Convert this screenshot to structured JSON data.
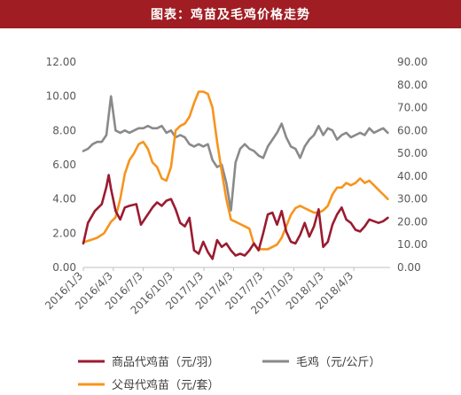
{
  "title": "图表：鸡苗及毛鸡价格走势",
  "chart_data": {
    "type": "line",
    "title": "图表：鸡苗及毛鸡价格走势",
    "xlabel": "",
    "ylabel": "",
    "x_tick_labels": [
      "2016/1/3",
      "2016/4/3",
      "2016/7/3",
      "2016/10/3",
      "2017/1/3",
      "2017/4/3",
      "2017/7/3",
      "2017/10/3",
      "2018/1/3",
      "2018/4/3"
    ],
    "x_range": [
      "2016/1/3",
      "2018/7/22"
    ],
    "y_left": {
      "ticks": [
        "0.00",
        "2.00",
        "4.00",
        "6.00",
        "8.00",
        "10.00",
        "12.00"
      ],
      "range": [
        0,
        12
      ]
    },
    "y_right": {
      "ticks": [
        "0.00",
        "10.00",
        "20.00",
        "30.00",
        "40.00",
        "50.00",
        "60.00",
        "70.00",
        "80.00",
        "90.00"
      ],
      "range": [
        0,
        90
      ]
    },
    "grid": false,
    "legend_position": "bottom",
    "series": [
      {
        "name": "商品代鸡苗（元/羽）",
        "axis": "left",
        "color": "#9b1b30",
        "points": [
          [
            "2016/1/3",
            1.4
          ],
          [
            "2016/1/17",
            2.6
          ],
          [
            "2016/2/7",
            3.3
          ],
          [
            "2016/2/28",
            3.7
          ],
          [
            "2016/3/13",
            4.7
          ],
          [
            "2016/3/20",
            5.4
          ],
          [
            "2016/3/27",
            4.6
          ],
          [
            "2016/4/10",
            3.3
          ],
          [
            "2016/4/24",
            2.8
          ],
          [
            "2016/5/8",
            3.5
          ],
          [
            "2016/5/22",
            3.6
          ],
          [
            "2016/6/12",
            3.7
          ],
          [
            "2016/6/26",
            2.5
          ],
          [
            "2016/7/10",
            2.9
          ],
          [
            "2016/7/31",
            3.5
          ],
          [
            "2016/8/14",
            3.8
          ],
          [
            "2016/8/28",
            3.6
          ],
          [
            "2016/9/11",
            3.9
          ],
          [
            "2016/9/25",
            4.0
          ],
          [
            "2016/10/9",
            3.4
          ],
          [
            "2016/10/23",
            2.6
          ],
          [
            "2016/11/6",
            2.4
          ],
          [
            "2016/11/20",
            2.9
          ],
          [
            "2016/12/4",
            1.0
          ],
          [
            "2016/12/18",
            0.8
          ],
          [
            "2017/1/1",
            1.5
          ],
          [
            "2017/1/15",
            0.9
          ],
          [
            "2017/1/29",
            0.5
          ],
          [
            "2017/2/12",
            1.6
          ],
          [
            "2017/2/26",
            1.2
          ],
          [
            "2017/3/12",
            1.4
          ],
          [
            "2017/3/26",
            1.0
          ],
          [
            "2017/4/9",
            0.7
          ],
          [
            "2017/4/23",
            0.8
          ],
          [
            "2017/5/7",
            0.7
          ],
          [
            "2017/5/21",
            1.0
          ],
          [
            "2017/6/4",
            1.4
          ],
          [
            "2017/6/18",
            1.0
          ],
          [
            "2017/7/2",
            2.0
          ],
          [
            "2017/7/16",
            3.1
          ],
          [
            "2017/7/30",
            3.2
          ],
          [
            "2017/8/13",
            2.5
          ],
          [
            "2017/8/27",
            3.3
          ],
          [
            "2017/9/10",
            2.1
          ],
          [
            "2017/9/24",
            1.5
          ],
          [
            "2017/10/8",
            1.4
          ],
          [
            "2017/10/22",
            1.9
          ],
          [
            "2017/11/5",
            2.6
          ],
          [
            "2017/11/19",
            1.8
          ],
          [
            "2017/12/3",
            2.4
          ],
          [
            "2017/12/17",
            3.4
          ],
          [
            "2017/12/31",
            1.2
          ],
          [
            "2018/1/14",
            1.5
          ],
          [
            "2018/1/28",
            2.5
          ],
          [
            "2018/2/11",
            3.1
          ],
          [
            "2018/2/25",
            3.5
          ],
          [
            "2018/3/11",
            2.8
          ],
          [
            "2018/3/25",
            2.6
          ],
          [
            "2018/4/8",
            2.2
          ],
          [
            "2018/4/22",
            2.1
          ],
          [
            "2018/5/6",
            2.4
          ],
          [
            "2018/5/20",
            2.8
          ],
          [
            "2018/6/3",
            2.7
          ],
          [
            "2018/6/17",
            2.6
          ],
          [
            "2018/7/1",
            2.7
          ],
          [
            "2018/7/15",
            2.9
          ]
        ]
      },
      {
        "name": "毛鸡（元/公斤）",
        "axis": "right",
        "color": "#8a8a8a",
        "points": [
          [
            "2016/1/3",
            51
          ],
          [
            "2016/1/17",
            52
          ],
          [
            "2016/1/31",
            54
          ],
          [
            "2016/2/14",
            55
          ],
          [
            "2016/2/28",
            55
          ],
          [
            "2016/3/13",
            58
          ],
          [
            "2016/3/27",
            75
          ],
          [
            "2016/4/10",
            60
          ],
          [
            "2016/4/24",
            59
          ],
          [
            "2016/5/8",
            60
          ],
          [
            "2016/5/22",
            59
          ],
          [
            "2016/6/5",
            60
          ],
          [
            "2016/6/19",
            61
          ],
          [
            "2016/7/3",
            61
          ],
          [
            "2016/7/17",
            62
          ],
          [
            "2016/7/31",
            61
          ],
          [
            "2016/8/14",
            61
          ],
          [
            "2016/8/28",
            62
          ],
          [
            "2016/9/11",
            59
          ],
          [
            "2016/9/25",
            60
          ],
          [
            "2016/10/9",
            57
          ],
          [
            "2016/10/23",
            58
          ],
          [
            "2016/11/6",
            57
          ],
          [
            "2016/11/20",
            54
          ],
          [
            "2016/12/4",
            53
          ],
          [
            "2016/12/18",
            54
          ],
          [
            "2017/1/1",
            53
          ],
          [
            "2017/1/15",
            54
          ],
          [
            "2017/1/29",
            47
          ],
          [
            "2017/2/12",
            44
          ],
          [
            "2017/2/26",
            45
          ],
          [
            "2017/3/12",
            37
          ],
          [
            "2017/3/26",
            25
          ],
          [
            "2017/4/9",
            46
          ],
          [
            "2017/4/23",
            52
          ],
          [
            "2017/5/7",
            54
          ],
          [
            "2017/5/21",
            52
          ],
          [
            "2017/6/4",
            51
          ],
          [
            "2017/6/18",
            49
          ],
          [
            "2017/7/2",
            48
          ],
          [
            "2017/7/16",
            53
          ],
          [
            "2017/7/30",
            56
          ],
          [
            "2017/8/13",
            59
          ],
          [
            "2017/8/27",
            63
          ],
          [
            "2017/9/10",
            57
          ],
          [
            "2017/9/24",
            53
          ],
          [
            "2017/10/8",
            52
          ],
          [
            "2017/10/22",
            48
          ],
          [
            "2017/11/5",
            53
          ],
          [
            "2017/11/19",
            56
          ],
          [
            "2017/12/3",
            58
          ],
          [
            "2017/12/17",
            62
          ],
          [
            "2017/12/31",
            58
          ],
          [
            "2018/1/14",
            61
          ],
          [
            "2018/1/28",
            60
          ],
          [
            "2018/2/11",
            56
          ],
          [
            "2018/2/25",
            58
          ],
          [
            "2018/3/11",
            59
          ],
          [
            "2018/3/25",
            57
          ],
          [
            "2018/4/8",
            58
          ],
          [
            "2018/4/22",
            59
          ],
          [
            "2018/5/6",
            58
          ],
          [
            "2018/5/20",
            61
          ],
          [
            "2018/6/3",
            59
          ],
          [
            "2018/6/17",
            60
          ],
          [
            "2018/7/1",
            61
          ],
          [
            "2018/7/15",
            59
          ]
        ]
      },
      {
        "name": "父母代鸡苗（元/套）",
        "axis": "right",
        "color": "#f7941d",
        "points": [
          [
            "2016/1/3",
            11
          ],
          [
            "2016/1/24",
            12
          ],
          [
            "2016/2/14",
            13
          ],
          [
            "2016/3/6",
            15
          ],
          [
            "2016/3/27",
            20
          ],
          [
            "2016/4/10",
            22
          ],
          [
            "2016/4/24",
            30
          ],
          [
            "2016/5/8",
            41
          ],
          [
            "2016/5/22",
            47
          ],
          [
            "2016/6/5",
            50
          ],
          [
            "2016/6/19",
            54
          ],
          [
            "2016/7/3",
            55
          ],
          [
            "2016/7/17",
            52
          ],
          [
            "2016/7/31",
            46
          ],
          [
            "2016/8/14",
            44
          ],
          [
            "2016/8/28",
            39
          ],
          [
            "2016/9/11",
            38
          ],
          [
            "2016/9/25",
            44
          ],
          [
            "2016/10/9",
            60
          ],
          [
            "2016/10/23",
            62
          ],
          [
            "2016/11/6",
            63
          ],
          [
            "2016/11/20",
            66
          ],
          [
            "2016/12/4",
            72
          ],
          [
            "2016/12/18",
            77
          ],
          [
            "2017/1/1",
            77
          ],
          [
            "2017/1/15",
            76
          ],
          [
            "2017/1/29",
            70
          ],
          [
            "2017/2/12",
            55
          ],
          [
            "2017/2/26",
            42
          ],
          [
            "2017/3/12",
            30
          ],
          [
            "2017/3/26",
            21
          ],
          [
            "2017/4/9",
            20
          ],
          [
            "2017/4/23",
            19
          ],
          [
            "2017/5/7",
            18
          ],
          [
            "2017/5/21",
            17
          ],
          [
            "2017/6/4",
            10
          ],
          [
            "2017/6/18",
            8
          ],
          [
            "2017/7/2",
            8
          ],
          [
            "2017/7/16",
            8
          ],
          [
            "2017/7/30",
            9
          ],
          [
            "2017/8/13",
            10
          ],
          [
            "2017/8/27",
            13
          ],
          [
            "2017/9/10",
            18
          ],
          [
            "2017/9/24",
            23
          ],
          [
            "2017/10/8",
            26
          ],
          [
            "2017/10/22",
            27
          ],
          [
            "2017/11/5",
            26
          ],
          [
            "2017/11/19",
            25
          ],
          [
            "2017/12/3",
            24
          ],
          [
            "2017/12/17",
            24
          ],
          [
            "2017/12/31",
            25
          ],
          [
            "2018/1/14",
            27
          ],
          [
            "2018/1/28",
            32
          ],
          [
            "2018/2/11",
            35
          ],
          [
            "2018/2/25",
            35
          ],
          [
            "2018/3/11",
            37
          ],
          [
            "2018/3/25",
            36
          ],
          [
            "2018/4/8",
            37
          ],
          [
            "2018/4/22",
            39
          ],
          [
            "2018/5/6",
            37
          ],
          [
            "2018/5/20",
            38
          ],
          [
            "2018/6/3",
            36
          ],
          [
            "2018/6/17",
            34
          ],
          [
            "2018/7/1",
            32
          ],
          [
            "2018/7/15",
            30
          ]
        ]
      }
    ]
  }
}
